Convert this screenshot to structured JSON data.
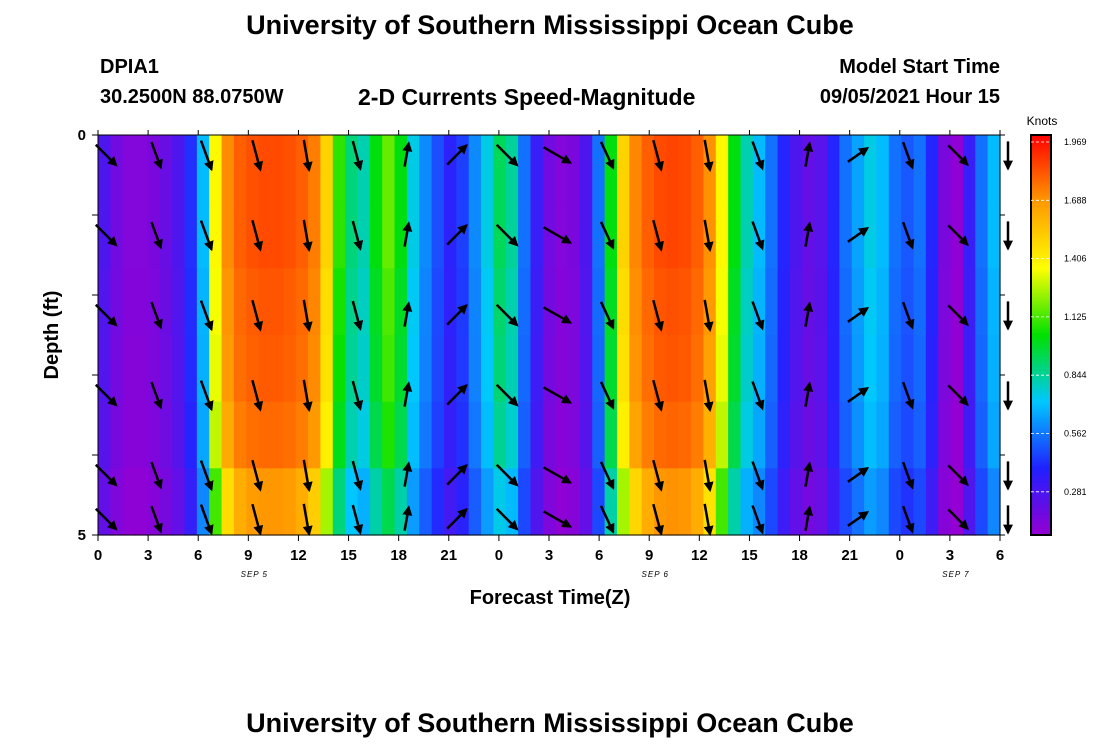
{
  "header": {
    "title": "University of Southern Mississippi Ocean Cube",
    "station": "DPIA1",
    "coords": "30.2500N  88.0750W",
    "subtitle": "2-D Currents Speed-Magnitude",
    "model_start_label": "Model Start Time",
    "model_start_value": "09/05/2021 Hour 15"
  },
  "footer": {
    "title": "University of Southern Mississippi Ocean Cube"
  },
  "colorbar": {
    "unit": "Knots",
    "ticks": [
      "1.969",
      "1.688",
      "1.406",
      "1.125",
      "0.844",
      "0.562",
      "0.281"
    ],
    "colors": [
      "#9400d3",
      "#2020ff",
      "#00c8ff",
      "#00e000",
      "#ffff00",
      "#ff9900",
      "#ff0000"
    ]
  },
  "chart_data": {
    "type": "heatmap",
    "title": "2-D Currents Speed-Magnitude",
    "xlabel": "Forecast Time(Z)",
    "ylabel": "Depth (ft)",
    "x_tick_labels": [
      "0",
      "3",
      "6",
      "9",
      "12",
      "15",
      "18",
      "21",
      "0",
      "3",
      "6",
      "9",
      "12",
      "15",
      "18",
      "21",
      "0",
      "3",
      "6"
    ],
    "date_labels": [
      "SEP 5",
      "SEP 6",
      "SEP 7"
    ],
    "y_tick_labels": [
      "0",
      "5"
    ],
    "ylim": [
      0,
      5
    ],
    "depth_levels": [
      0,
      1,
      2,
      3,
      4,
      5
    ],
    "speed_scale": [
      0.14,
      1.969
    ],
    "speed_profile_knots": [
      0.3,
      0.22,
      0.18,
      0.18,
      0.2,
      0.24,
      0.3,
      0.42,
      0.7,
      1.2,
      1.5,
      1.65,
      1.7,
      1.72,
      1.72,
      1.7,
      1.65,
      1.55,
      1.3,
      1.0,
      0.85,
      0.8,
      0.95,
      1.05,
      0.95,
      0.75,
      0.6,
      0.48,
      0.38,
      0.45,
      0.6,
      0.75,
      0.88,
      0.82,
      0.55,
      0.35,
      0.22,
      0.18,
      0.2,
      0.3,
      0.55,
      0.95,
      1.3,
      1.52,
      1.65,
      1.72,
      1.74,
      1.72,
      1.65,
      1.48,
      1.2,
      0.95,
      0.8,
      0.7,
      0.55,
      0.4,
      0.3,
      0.25,
      0.28,
      0.4,
      0.55,
      0.65,
      0.75,
      0.7,
      0.55,
      0.5,
      0.55,
      0.4,
      0.2,
      0.15,
      0.35,
      0.55,
      0.7
    ],
    "depth_factor": [
      1.0,
      1.0,
      0.98,
      0.97,
      0.94,
      0.85
    ],
    "vector_hours": [
      0,
      3,
      6,
      9,
      12,
      15,
      18,
      21,
      24,
      27,
      30,
      33,
      36,
      39,
      42,
      45,
      48,
      51,
      54
    ],
    "vector_directions_deg": [
      135,
      160,
      160,
      165,
      170,
      165,
      10,
      45,
      135,
      120,
      155,
      165,
      170,
      160,
      10,
      55,
      160,
      135,
      180
    ],
    "vector_magnitudes": [
      0.85,
      0.8,
      0.9,
      0.9,
      0.9,
      0.85,
      0.7,
      0.8,
      0.85,
      0.9,
      0.85,
      0.9,
      0.9,
      0.85,
      0.7,
      0.7,
      0.8,
      0.8,
      0.8
    ]
  }
}
